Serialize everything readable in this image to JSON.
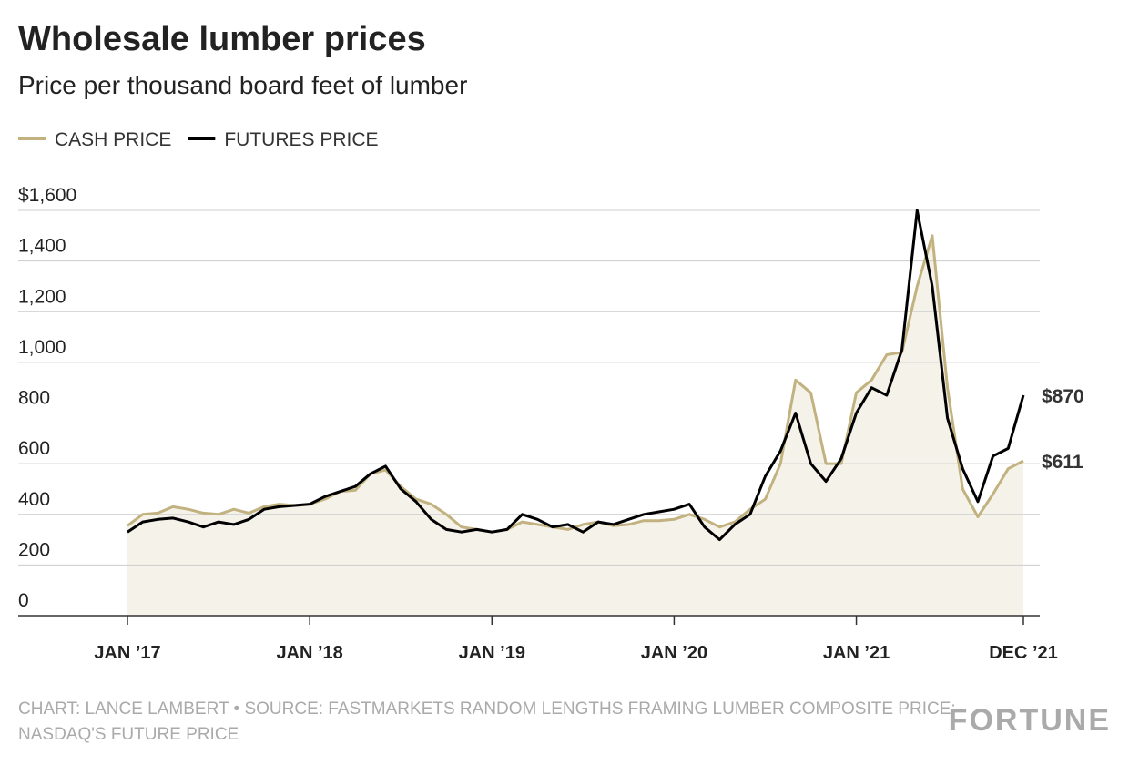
{
  "chart_data": {
    "type": "line",
    "title": "Wholesale lumber prices",
    "subtitle": "Price per thousand board feet of lumber",
    "source": [
      "CHART: LANCE LAMBERT • SOURCE: FASTMARKETS RANDOM LENGTHS FRAMING LUMBER COMPOSITE PRICE;",
      "NASDAQ'S FUTURE PRICE"
    ],
    "brand": "FORTUNE",
    "x": [
      "2017-01",
      "2017-02",
      "2017-03",
      "2017-04",
      "2017-05",
      "2017-06",
      "2017-07",
      "2017-08",
      "2017-09",
      "2017-10",
      "2017-11",
      "2017-12",
      "2018-01",
      "2018-02",
      "2018-03",
      "2018-04",
      "2018-05",
      "2018-06",
      "2018-07",
      "2018-08",
      "2018-09",
      "2018-10",
      "2018-11",
      "2018-12",
      "2019-01",
      "2019-02",
      "2019-03",
      "2019-04",
      "2019-05",
      "2019-06",
      "2019-07",
      "2019-08",
      "2019-09",
      "2019-10",
      "2019-11",
      "2019-12",
      "2020-01",
      "2020-02",
      "2020-03",
      "2020-04",
      "2020-05",
      "2020-06",
      "2020-07",
      "2020-08",
      "2020-09",
      "2020-10",
      "2020-11",
      "2020-12",
      "2021-01",
      "2021-02",
      "2021-03",
      "2021-04",
      "2021-05",
      "2021-06",
      "2021-07",
      "2021-08",
      "2021-09",
      "2021-10",
      "2021-11",
      "2021-12"
    ],
    "xlim": [
      "2017-01",
      "2021-12"
    ],
    "xticks": [
      {
        "value": "2017-01",
        "label": "JAN ’17"
      },
      {
        "value": "2018-01",
        "label": "JAN ’18"
      },
      {
        "value": "2019-01",
        "label": "JAN ’19"
      },
      {
        "value": "2020-01",
        "label": "JAN ’20"
      },
      {
        "value": "2021-01",
        "label": "JAN ’21"
      },
      {
        "value": "2021-12",
        "label": "DEC ’21"
      }
    ],
    "ylim": [
      0,
      1600
    ],
    "yticks": [
      0,
      200,
      400,
      600,
      800,
      {
        "value": 1000,
        "label": "1,000"
      },
      {
        "value": 1200,
        "label": "1,200"
      },
      {
        "value": 1400,
        "label": "1,400"
      },
      {
        "value": 1600,
        "label": "$1,600"
      }
    ],
    "grid": true,
    "legend": "top-left",
    "series": [
      {
        "name": "CASH PRICE",
        "color": "#c2b280",
        "area": "#f5f2ea",
        "values": [
          355,
          400,
          405,
          430,
          420,
          405,
          400,
          420,
          405,
          430,
          440,
          435,
          440,
          460,
          490,
          495,
          560,
          575,
          510,
          460,
          440,
          400,
          350,
          340,
          330,
          340,
          370,
          360,
          350,
          340,
          360,
          370,
          355,
          360,
          375,
          375,
          380,
          400,
          380,
          350,
          370,
          420,
          460,
          600,
          930,
          880,
          600,
          600,
          880,
          930,
          1030,
          1040,
          1300,
          1500,
          900,
          500,
          390,
          480,
          580,
          611
        ],
        "value_labels": [
          null,
          null,
          null,
          null,
          null,
          null,
          null,
          null,
          null,
          null,
          null,
          null,
          null,
          null,
          null,
          null,
          null,
          null,
          null,
          null,
          null,
          null,
          null,
          null,
          null,
          null,
          null,
          null,
          null,
          null,
          null,
          null,
          null,
          null,
          null,
          null,
          null,
          null,
          null,
          null,
          null,
          null,
          null,
          null,
          null,
          null,
          null,
          null,
          null,
          null,
          null,
          null,
          null,
          null,
          null,
          null,
          null,
          null,
          null,
          "$611"
        ]
      },
      {
        "name": "FUTURES PRICE",
        "color": "#000000",
        "values": [
          330,
          370,
          380,
          385,
          370,
          350,
          370,
          360,
          380,
          420,
          430,
          435,
          440,
          470,
          490,
          510,
          560,
          590,
          500,
          450,
          380,
          340,
          330,
          340,
          330,
          340,
          400,
          380,
          350,
          360,
          330,
          370,
          360,
          380,
          400,
          410,
          420,
          440,
          350,
          300,
          360,
          400,
          550,
          650,
          800,
          600,
          530,
          620,
          800,
          900,
          870,
          1050,
          1600,
          1300,
          780,
          580,
          450,
          630,
          660,
          870
        ],
        "value_labels": [
          null,
          null,
          null,
          null,
          null,
          null,
          null,
          null,
          null,
          null,
          null,
          null,
          null,
          null,
          null,
          null,
          null,
          null,
          null,
          null,
          null,
          null,
          null,
          null,
          null,
          null,
          null,
          null,
          null,
          null,
          null,
          null,
          null,
          null,
          null,
          null,
          null,
          null,
          null,
          null,
          null,
          null,
          null,
          null,
          null,
          null,
          null,
          null,
          null,
          null,
          null,
          null,
          null,
          null,
          null,
          null,
          null,
          null,
          null,
          "$870"
        ]
      }
    ]
  }
}
